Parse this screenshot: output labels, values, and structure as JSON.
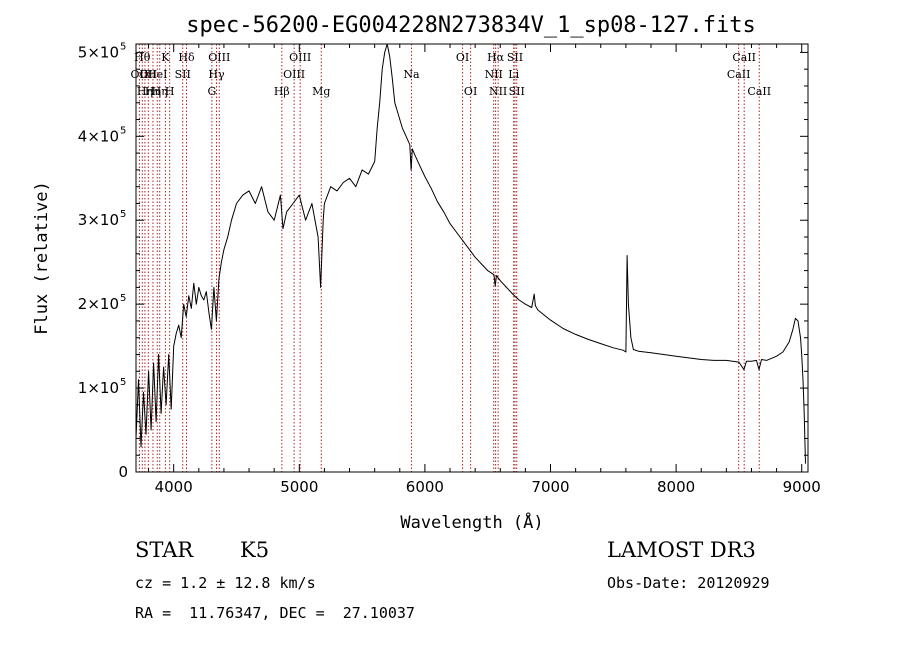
{
  "chart_data": {
    "type": "line",
    "title": "spec-56200-EG004228N273834V_1_sp08-127.fits",
    "xlabel": "Wavelength (Å)",
    "ylabel": "Flux (relative)",
    "xlim": [
      3700,
      9050
    ],
    "ylim": [
      0,
      510000
    ],
    "xticks": [
      {
        "value": 4000,
        "label": "4000"
      },
      {
        "value": 5000,
        "label": "5000"
      },
      {
        "value": 6000,
        "label": "6000"
      },
      {
        "value": 7000,
        "label": "7000"
      },
      {
        "value": 8000,
        "label": "8000"
      },
      {
        "value": 9000,
        "label": "9000"
      }
    ],
    "yticks": [
      {
        "value": 0,
        "mant": "0",
        "exp": ""
      },
      {
        "value": 100000,
        "mant": "1×10",
        "exp": "5"
      },
      {
        "value": 200000,
        "mant": "2×10",
        "exp": "5"
      },
      {
        "value": 300000,
        "mant": "3×10",
        "exp": "5"
      },
      {
        "value": 400000,
        "mant": "4×10",
        "exp": "5"
      },
      {
        "value": 500000,
        "mant": "5×10",
        "exp": "5"
      }
    ],
    "series": [
      {
        "name": "spectrum",
        "x": [
          3700,
          3720,
          3740,
          3760,
          3780,
          3800,
          3820,
          3840,
          3860,
          3880,
          3900,
          3920,
          3940,
          3960,
          3980,
          4000,
          4020,
          4040,
          4060,
          4080,
          4100,
          4120,
          4140,
          4160,
          4180,
          4200,
          4220,
          4240,
          4260,
          4280,
          4300,
          4320,
          4340,
          4360,
          4380,
          4400,
          4430,
          4460,
          4500,
          4550,
          4600,
          4650,
          4700,
          4750,
          4800,
          4850,
          4870,
          4900,
          4950,
          5000,
          5050,
          5100,
          5150,
          5170,
          5180,
          5190,
          5200,
          5250,
          5300,
          5350,
          5400,
          5450,
          5500,
          5550,
          5600,
          5620,
          5640,
          5660,
          5680,
          5700,
          5720,
          5740,
          5760,
          5780,
          5800,
          5820,
          5850,
          5880,
          5890,
          5900,
          5920,
          5950,
          6000,
          6050,
          6100,
          6150,
          6200,
          6250,
          6300,
          6350,
          6400,
          6450,
          6500,
          6550,
          6560,
          6570,
          6600,
          6650,
          6700,
          6750,
          6800,
          6850,
          6870,
          6880,
          6900,
          6950,
          7000,
          7100,
          7200,
          7300,
          7400,
          7500,
          7580,
          7600,
          7610,
          7620,
          7640,
          7660,
          7700,
          7800,
          7900,
          8000,
          8100,
          8200,
          8300,
          8400,
          8500,
          8540,
          8560,
          8600,
          8640,
          8660,
          8680,
          8720,
          8800,
          8850,
          8900,
          8930,
          8950,
          8970,
          8990,
          9000,
          9010,
          9020,
          9030
        ],
        "values": [
          40000,
          110000,
          30000,
          95000,
          45000,
          120000,
          50000,
          130000,
          60000,
          140000,
          70000,
          125000,
          80000,
          140000,
          75000,
          150000,
          165000,
          175000,
          160000,
          200000,
          185000,
          210000,
          195000,
          225000,
          200000,
          220000,
          210000,
          205000,
          215000,
          190000,
          170000,
          220000,
          180000,
          230000,
          250000,
          265000,
          280000,
          300000,
          320000,
          330000,
          335000,
          320000,
          340000,
          310000,
          300000,
          330000,
          290000,
          310000,
          320000,
          330000,
          300000,
          320000,
          280000,
          220000,
          260000,
          300000,
          320000,
          340000,
          335000,
          345000,
          350000,
          340000,
          360000,
          355000,
          370000,
          410000,
          440000,
          480000,
          500000,
          510000,
          495000,
          470000,
          440000,
          430000,
          420000,
          410000,
          400000,
          390000,
          360000,
          385000,
          378000,
          368000,
          352000,
          338000,
          322000,
          310000,
          296000,
          286000,
          276000,
          266000,
          256000,
          248000,
          240000,
          235000,
          222000,
          234000,
          228000,
          220000,
          212000,
          205000,
          200000,
          196000,
          212000,
          198000,
          193000,
          187000,
          181000,
          171000,
          164000,
          158000,
          153000,
          148000,
          145000,
          143000,
          258000,
          200000,
          160000,
          146000,
          144000,
          142000,
          140000,
          138000,
          136000,
          134000,
          133000,
          133000,
          131000,
          122000,
          132000,
          132000,
          133000,
          122000,
          134000,
          133000,
          138000,
          143000,
          155000,
          170000,
          183000,
          180000,
          160000,
          140000,
          110000,
          70000,
          10000
        ]
      }
    ],
    "lines": [
      {
        "wave": 3727,
        "label": "OII",
        "row": 2
      },
      {
        "wave": 3750,
        "label": "Hθ",
        "row": 1
      },
      {
        "wave": 3771,
        "label": "Hη",
        "row": 3
      },
      {
        "wave": 3798,
        "label": "OII",
        "row": 2
      },
      {
        "wave": 3835,
        "label": "Hη",
        "row": 3
      },
      {
        "wave": 3869,
        "label": "HeI",
        "row": 2
      },
      {
        "wave": 3889,
        "label": "Hη",
        "row": 3
      },
      {
        "wave": 3934,
        "label": "K",
        "row": 1
      },
      {
        "wave": 3968,
        "label": "H",
        "row": 3
      },
      {
        "wave": 4072,
        "label": "SII",
        "row": 2
      },
      {
        "wave": 4102,
        "label": "Hδ",
        "row": 1
      },
      {
        "wave": 4304,
        "label": "G",
        "row": 3
      },
      {
        "wave": 4341,
        "label": "Hγ",
        "row": 2
      },
      {
        "wave": 4363,
        "label": "OIII",
        "row": 1
      },
      {
        "wave": 4861,
        "label": "Hβ",
        "row": 3
      },
      {
        "wave": 4959,
        "label": "OIII",
        "row": 2
      },
      {
        "wave": 5007,
        "label": "OIII",
        "row": 1
      },
      {
        "wave": 5175,
        "label": "Mg",
        "row": 3
      },
      {
        "wave": 5893,
        "label": "Na",
        "row": 2
      },
      {
        "wave": 6300,
        "label": "OI",
        "row": 1
      },
      {
        "wave": 6364,
        "label": "OI",
        "row": 3
      },
      {
        "wave": 6548,
        "label": "NII",
        "row": 2
      },
      {
        "wave": 6563,
        "label": "Hα",
        "row": 1
      },
      {
        "wave": 6583,
        "label": "NII",
        "row": 3
      },
      {
        "wave": 6707,
        "label": "Li",
        "row": 2
      },
      {
        "wave": 6717,
        "label": "SII",
        "row": 1
      },
      {
        "wave": 6731,
        "label": "SII",
        "row": 3
      },
      {
        "wave": 8498,
        "label": "CaII",
        "row": 2
      },
      {
        "wave": 8542,
        "label": "CaII",
        "row": 1
      },
      {
        "wave": 8662,
        "label": "CaII",
        "row": 3
      }
    ]
  },
  "info": {
    "object_class": "STAR",
    "subclass": "K5",
    "cz": "cz = 1.2 ± 12.8 km/s",
    "radec": "RA =  11.76347, DEC =  27.10037",
    "survey": "LAMOST DR3",
    "obs_date": "Obs-Date: 20120929"
  },
  "colors": {
    "line_marker": "#b22222",
    "spectrum": "#000000"
  }
}
